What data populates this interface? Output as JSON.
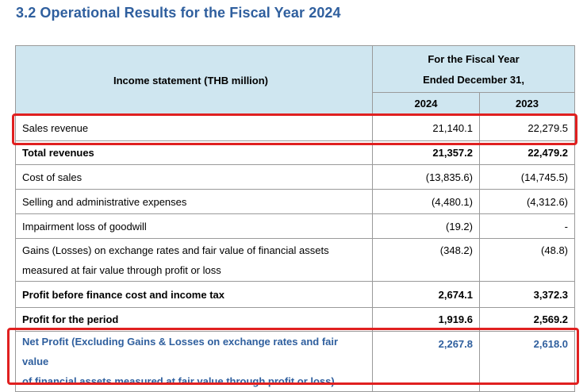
{
  "title": "3.2  Operational Results for the Fiscal Year 2024",
  "table": {
    "label_header": "Income statement (THB million)",
    "period_header_line1": "For the Fiscal Year",
    "period_header_line2": "Ended December 31,",
    "years": [
      "2024",
      "2023"
    ],
    "rows": [
      {
        "label": "Sales revenue",
        "v2024": "21,140.1",
        "v2023": "22,279.5",
        "style": "normal"
      },
      {
        "label": "Total revenues",
        "v2024": "21,357.2",
        "v2023": "22,479.2",
        "style": "bold"
      },
      {
        "label": "Cost of sales",
        "v2024": "(13,835.6)",
        "v2023": "(14,745.5)",
        "style": "normal"
      },
      {
        "label": "Selling and administrative expenses",
        "v2024": "(4,480.1)",
        "v2023": "(4,312.6)",
        "style": "normal"
      },
      {
        "label": "Impairment loss of goodwill",
        "v2024": "(19.2)",
        "v2023": "-",
        "style": "normal"
      },
      {
        "label_line1": "Gains (Losses) on exchange rates and fair value of financial assets",
        "label_line2": "measured at fair value through profit or loss",
        "v2024": "(348.2)",
        "v2023": "(48.8)",
        "style": "normal"
      },
      {
        "label": "Profit before finance cost and income tax",
        "v2024": "2,674.1",
        "v2023": "3,372.3",
        "style": "bold"
      },
      {
        "label": "Profit for the period",
        "v2024": "1,919.6",
        "v2023": "2,569.2",
        "style": "bold"
      },
      {
        "label_line1": "Net Profit (Excluding Gains & Losses on exchange rates and fair value",
        "label_line2": "of financial assets measured at fair value through profit or loss)",
        "v2024": "2,267.8",
        "v2023": "2,618.0",
        "style": "highlight"
      }
    ]
  },
  "colors": {
    "title": "#2f5f9e",
    "header_bg": "#cfe6f0",
    "highlight_box": "#e02020",
    "net_profit_text": "#2f5f9e"
  }
}
